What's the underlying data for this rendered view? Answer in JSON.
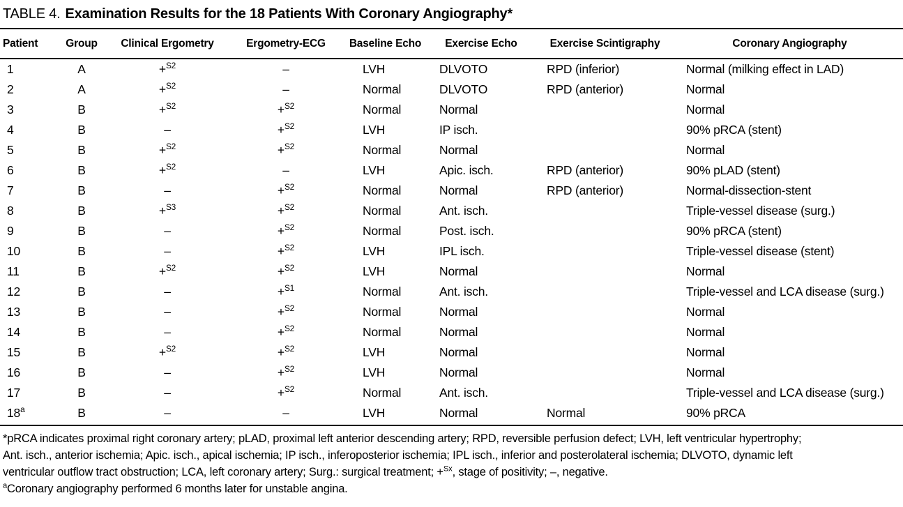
{
  "title": {
    "label": "TABLE 4.",
    "text": "Examination Results for the 18 Patients With Coronary Angiography*"
  },
  "columns": [
    "Patient",
    "Group",
    "Clinical Ergometry",
    "Ergometry-ECG",
    "Baseline Echo",
    "Exercise Echo",
    "Exercise Scintigraphy",
    "Coronary Angiography"
  ],
  "rows": [
    {
      "patient": "1",
      "group": "A",
      "clinical_ergometry": "+^{S2}",
      "ergometry_ecg": "–",
      "baseline_echo": "LVH",
      "exercise_echo": "DLVOTO",
      "exercise_scintigraphy": "RPD (inferior)",
      "coronary_angiography": "Normal (milking effect in LAD)"
    },
    {
      "patient": "2",
      "group": "A",
      "clinical_ergometry": "+^{S2}",
      "ergometry_ecg": "–",
      "baseline_echo": "Normal",
      "exercise_echo": "DLVOTO",
      "exercise_scintigraphy": "RPD (anterior)",
      "coronary_angiography": "Normal"
    },
    {
      "patient": "3",
      "group": "B",
      "clinical_ergometry": "+^{S2}",
      "ergometry_ecg": "+^{S2}",
      "baseline_echo": "Normal",
      "exercise_echo": "Normal",
      "exercise_scintigraphy": "",
      "coronary_angiography": "Normal"
    },
    {
      "patient": "4",
      "group": "B",
      "clinical_ergometry": "–",
      "ergometry_ecg": "+^{S2}",
      "baseline_echo": "LVH",
      "exercise_echo": "IP isch.",
      "exercise_scintigraphy": "",
      "coronary_angiography": "90% pRCA (stent)"
    },
    {
      "patient": "5",
      "group": "B",
      "clinical_ergometry": "+^{S2}",
      "ergometry_ecg": "+^{S2}",
      "baseline_echo": "Normal",
      "exercise_echo": "Normal",
      "exercise_scintigraphy": "",
      "coronary_angiography": "Normal"
    },
    {
      "patient": "6",
      "group": "B",
      "clinical_ergometry": "+^{S2}",
      "ergometry_ecg": "–",
      "baseline_echo": "LVH",
      "exercise_echo": "Apic. isch.",
      "exercise_scintigraphy": "RPD (anterior)",
      "coronary_angiography": "90% pLAD (stent)"
    },
    {
      "patient": "7",
      "group": "B",
      "clinical_ergometry": "–",
      "ergometry_ecg": "+^{S2}",
      "baseline_echo": "Normal",
      "exercise_echo": "Normal",
      "exercise_scintigraphy": "RPD (anterior)",
      "coronary_angiography": "Normal-dissection-stent"
    },
    {
      "patient": "8",
      "group": "B",
      "clinical_ergometry": "+^{S3}",
      "ergometry_ecg": "+^{S2}",
      "baseline_echo": "Normal",
      "exercise_echo": "Ant. isch.",
      "exercise_scintigraphy": "",
      "coronary_angiography": "Triple-vessel disease (surg.)"
    },
    {
      "patient": "9",
      "group": "B",
      "clinical_ergometry": "–",
      "ergometry_ecg": "+^{S2}",
      "baseline_echo": "Normal",
      "exercise_echo": "Post. isch.",
      "exercise_scintigraphy": "",
      "coronary_angiography": "90% pRCA (stent)"
    },
    {
      "patient": "10",
      "group": "B",
      "clinical_ergometry": "–",
      "ergometry_ecg": "+^{S2}",
      "baseline_echo": "LVH",
      "exercise_echo": "IPL isch.",
      "exercise_scintigraphy": "",
      "coronary_angiography": "Triple-vessel disease (stent)"
    },
    {
      "patient": "11",
      "group": "B",
      "clinical_ergometry": "+^{S2}",
      "ergometry_ecg": "+^{S2}",
      "baseline_echo": "LVH",
      "exercise_echo": "Normal",
      "exercise_scintigraphy": "",
      "coronary_angiography": "Normal"
    },
    {
      "patient": "12",
      "group": "B",
      "clinical_ergometry": "–",
      "ergometry_ecg": "+^{S1}",
      "baseline_echo": "Normal",
      "exercise_echo": "Ant. isch.",
      "exercise_scintigraphy": "",
      "coronary_angiography": "Triple-vessel and LCA disease (surg.)"
    },
    {
      "patient": "13",
      "group": "B",
      "clinical_ergometry": "–",
      "ergometry_ecg": "+^{S2}",
      "baseline_echo": "Normal",
      "exercise_echo": "Normal",
      "exercise_scintigraphy": "",
      "coronary_angiography": "Normal"
    },
    {
      "patient": "14",
      "group": "B",
      "clinical_ergometry": "–",
      "ergometry_ecg": "+^{S2}",
      "baseline_echo": "Normal",
      "exercise_echo": "Normal",
      "exercise_scintigraphy": "",
      "coronary_angiography": "Normal"
    },
    {
      "patient": "15",
      "group": "B",
      "clinical_ergometry": "+^{S2}",
      "ergometry_ecg": "+^{S2}",
      "baseline_echo": "LVH",
      "exercise_echo": "Normal",
      "exercise_scintigraphy": "",
      "coronary_angiography": "Normal"
    },
    {
      "patient": "16",
      "group": "B",
      "clinical_ergometry": "–",
      "ergometry_ecg": "+^{S2}",
      "baseline_echo": "LVH",
      "exercise_echo": "Normal",
      "exercise_scintigraphy": "",
      "coronary_angiography": "Normal"
    },
    {
      "patient": "17",
      "group": "B",
      "clinical_ergometry": "–",
      "ergometry_ecg": "+^{S2}",
      "baseline_echo": "Normal",
      "exercise_echo": "Ant. isch.",
      "exercise_scintigraphy": "",
      "coronary_angiography": "Triple-vessel and LCA disease (surg.)"
    },
    {
      "patient": "18^{a}",
      "group": "B",
      "clinical_ergometry": "–",
      "ergometry_ecg": "–",
      "baseline_echo": "LVH",
      "exercise_echo": "Normal",
      "exercise_scintigraphy": "Normal",
      "coronary_angiography": "90% pRCA"
    }
  ],
  "footnotes": [
    "*pRCA indicates proximal right coronary artery; pLAD, proximal left anterior descending artery; RPD, reversible perfusion defect; LVH, left ventricular hypertrophy;",
    "Ant. isch., anterior ischemia; Apic. isch., apical ischemia; IP isch., inferoposterior ischemia; IPL isch., inferior and posterolateral ischemia; DLVOTO, dynamic left",
    "ventricular outflow tract obstruction; LCA, left coronary artery; Surg.: surgical treatment; +^{Sx}, stage of positivity; –, negative.",
    "^{a}Coronary angiography performed 6 months later for unstable angina."
  ],
  "colors": {
    "text": "#000000",
    "background": "#ffffff",
    "rule": "#000000"
  }
}
